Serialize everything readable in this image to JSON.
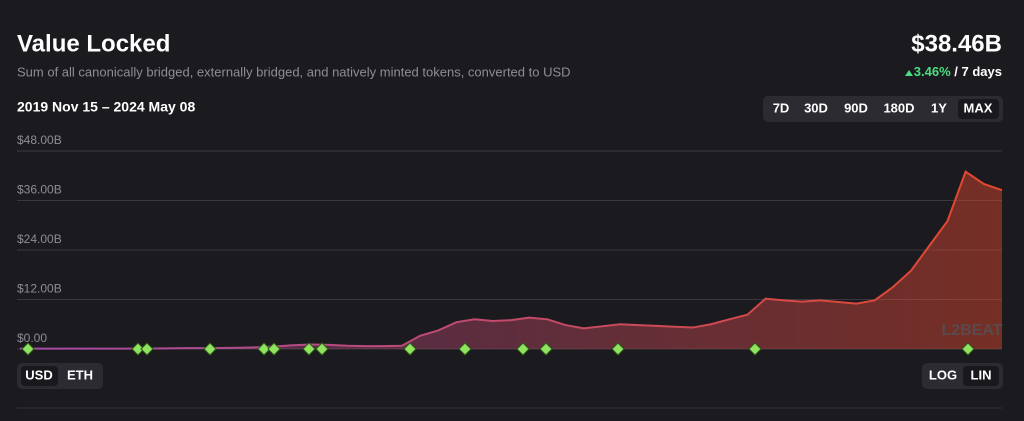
{
  "header": {
    "title": "Value Locked",
    "subtitle": "Sum of all canonically bridged, externally bridged, and natively minted tokens, converted to USD",
    "range": "2019 Nov 15 – 2024 May 08",
    "total": "$38.46B",
    "change": "3.46%",
    "period": "/ 7 days"
  },
  "controls": {
    "ranges": [
      "7D",
      "30D",
      "90D",
      "180D",
      "1Y",
      "MAX"
    ],
    "units": [
      "USD",
      "ETH"
    ],
    "scales": [
      "LOG",
      "LIN"
    ]
  },
  "watermark": "L2BEAT",
  "chart_data": {
    "type": "area",
    "categories": [
      null,
      null,
      null,
      null,
      null,
      null,
      null,
      null,
      null,
      null,
      null,
      null,
      null,
      null,
      null,
      null,
      null,
      null,
      null,
      null,
      null,
      null,
      null,
      null,
      null,
      null,
      null,
      null,
      null,
      null,
      null,
      null,
      null,
      null,
      null,
      null,
      null,
      null,
      null,
      null,
      null,
      null,
      null,
      null,
      null,
      null,
      null,
      null,
      null,
      null,
      null,
      null,
      null,
      null,
      null
    ],
    "values": [
      0.1,
      0.1,
      0.1,
      0.1,
      0.1,
      0.1,
      0.1,
      0.1,
      0.15,
      0.2,
      0.2,
      0.25,
      0.3,
      0.4,
      0.6,
      0.9,
      1.1,
      1.0,
      0.8,
      0.7,
      0.7,
      0.8,
      3.2,
      4.5,
      6.5,
      7.2,
      6.8,
      7.0,
      7.6,
      7.2,
      5.8,
      5.0,
      5.5,
      6.0,
      5.8,
      5.6,
      5.4,
      5.2,
      6.0,
      7.2,
      8.3,
      12.2,
      11.8,
      11.5,
      11.8,
      11.4,
      11.0,
      11.8,
      15.0,
      19.0,
      25.0,
      31.0,
      43.0,
      40.0,
      38.5
    ],
    "color": [
      "#a34ca8",
      "#e4482b"
    ],
    "ylim": [
      0,
      48
    ],
    "yticks": [
      {
        "value": 0,
        "label": "$0.00"
      },
      {
        "value": 12,
        "label": "$12.00B"
      },
      {
        "value": 24,
        "label": "$24.00B"
      },
      {
        "value": 36,
        "label": "$36.00B"
      },
      {
        "value": 48,
        "label": "$48.00B"
      }
    ],
    "grid": true
  }
}
